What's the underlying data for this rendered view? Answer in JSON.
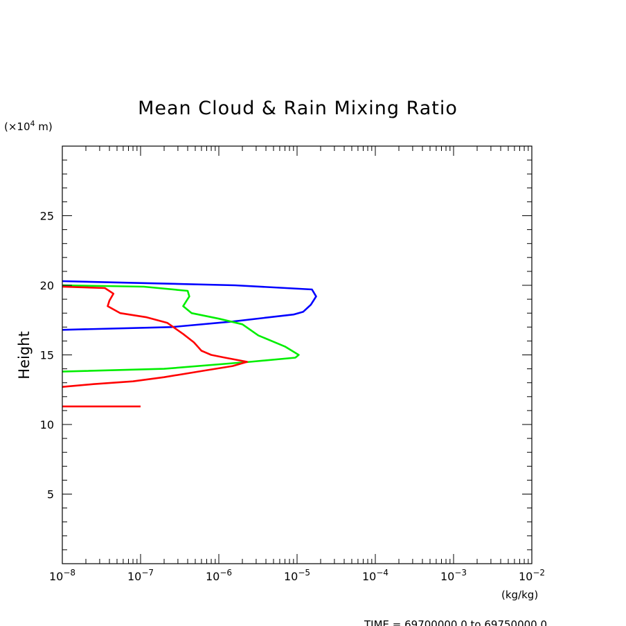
{
  "chart_data": {
    "type": "line",
    "title": "Mean Cloud & Rain Mixing Ratio",
    "y_unit_prefix": "(×10",
    "y_unit_exp": "4",
    "y_unit_suffix": " m)",
    "xlabel": "(kg/kg)",
    "ylabel": "Height",
    "footer": "TIME = 69700000.0 to 69750000.0",
    "x_scale": "log",
    "xlim": [
      1e-08,
      0.01
    ],
    "ylim": [
      0,
      30
    ],
    "x_ticks": [
      {
        "base": "10",
        "exp": "−8",
        "value": 1e-08
      },
      {
        "base": "10",
        "exp": "−7",
        "value": 1e-07
      },
      {
        "base": "10",
        "exp": "−6",
        "value": 1e-06
      },
      {
        "base": "10",
        "exp": "−5",
        "value": 1e-05
      },
      {
        "base": "10",
        "exp": "−4",
        "value": 0.0001
      },
      {
        "base": "10",
        "exp": "−3",
        "value": 0.001
      },
      {
        "base": "10",
        "exp": "−2",
        "value": 0.01
      }
    ],
    "y_ticks": [
      {
        "label": "5",
        "value": 5
      },
      {
        "label": "10",
        "value": 10
      },
      {
        "label": "15",
        "value": 15
      },
      {
        "label": "20",
        "value": 20
      },
      {
        "label": "25",
        "value": 25
      }
    ],
    "grid": false,
    "legend": "none",
    "series": [
      {
        "color": "#0000ff",
        "points": [
          [
            1e-08,
            20.3
          ],
          [
            1.6e-06,
            20.0
          ],
          [
            1.55e-05,
            19.7
          ],
          [
            1.75e-05,
            19.2
          ],
          [
            1.5e-05,
            18.6
          ],
          [
            1.2e-05,
            18.1
          ],
          [
            9e-06,
            17.9
          ],
          [
            1.5e-06,
            17.4
          ],
          [
            2.5e-07,
            17.0
          ],
          [
            1e-08,
            16.8
          ]
        ]
      },
      {
        "color": "#00ee00",
        "points": [
          [
            1e-08,
            20.0
          ],
          [
            1.1e-07,
            19.9
          ],
          [
            4e-07,
            19.6
          ],
          [
            4.2e-07,
            19.2
          ],
          [
            3.5e-07,
            18.5
          ],
          [
            4.5e-07,
            18.0
          ],
          [
            1e-06,
            17.6
          ],
          [
            2e-06,
            17.2
          ],
          [
            3.2e-06,
            16.4
          ],
          [
            7e-06,
            15.6
          ],
          [
            1.05e-05,
            15.0
          ],
          [
            9.5e-06,
            14.8
          ],
          [
            2.5e-06,
            14.5
          ],
          [
            2e-07,
            14.0
          ],
          [
            1e-08,
            13.8
          ]
        ]
      },
      {
        "color": "#ff0000",
        "points": [
          [
            1e-08,
            19.9
          ],
          [
            3.5e-08,
            19.8
          ],
          [
            4.5e-08,
            19.4
          ],
          [
            4e-08,
            18.9
          ],
          [
            3.8e-08,
            18.5
          ],
          [
            5.5e-08,
            18.0
          ],
          [
            1.2e-07,
            17.7
          ],
          [
            2.2e-07,
            17.3
          ],
          [
            3.5e-07,
            16.5
          ],
          [
            4.8e-07,
            15.9
          ],
          [
            6e-07,
            15.3
          ],
          [
            8e-07,
            15.0
          ],
          [
            1.2e-06,
            14.8
          ],
          [
            2.3e-06,
            14.5
          ],
          [
            1.5e-06,
            14.2
          ],
          [
            7e-07,
            13.9
          ],
          [
            2e-07,
            13.4
          ],
          [
            8e-08,
            13.1
          ],
          [
            2.5e-08,
            12.9
          ],
          [
            1e-08,
            12.7
          ]
        ]
      },
      {
        "color": "#ff0000",
        "points": [
          [
            1e-08,
            11.3
          ],
          [
            1e-07,
            11.3
          ]
        ]
      }
    ]
  }
}
